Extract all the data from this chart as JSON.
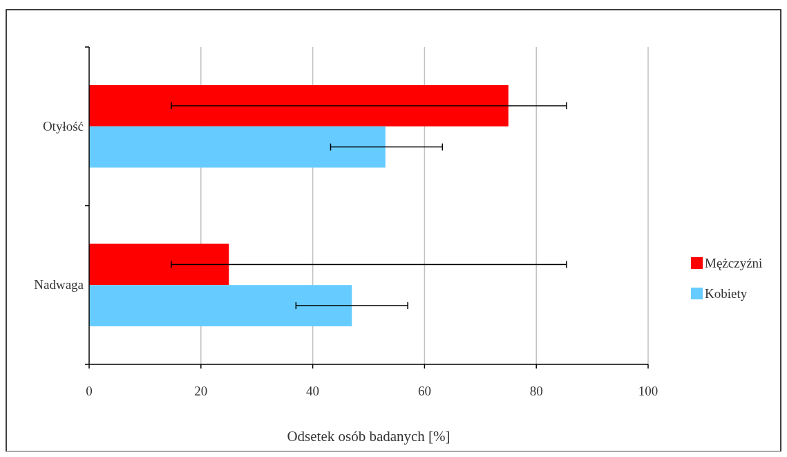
{
  "chart_data": {
    "type": "bar",
    "orientation": "horizontal",
    "categories": [
      "Otyłość",
      "Nadwaga"
    ],
    "series": [
      {
        "name": "Mężczyźni",
        "color": "#ff0000",
        "values": [
          75,
          25
        ],
        "errors": [
          [
            14.7,
            85.4
          ],
          [
            14.7,
            85.4
          ]
        ]
      },
      {
        "name": "Kobiety",
        "color": "#66ccff",
        "values": [
          53,
          47
        ],
        "errors": [
          [
            43.2,
            63.2
          ],
          [
            37,
            57
          ]
        ]
      }
    ],
    "xlim": [
      0,
      100
    ],
    "xticks": [
      0,
      20,
      40,
      60,
      80,
      100
    ],
    "xlabel": "Odsetek osób badanych [%]",
    "grid": "x",
    "legend": "right"
  }
}
